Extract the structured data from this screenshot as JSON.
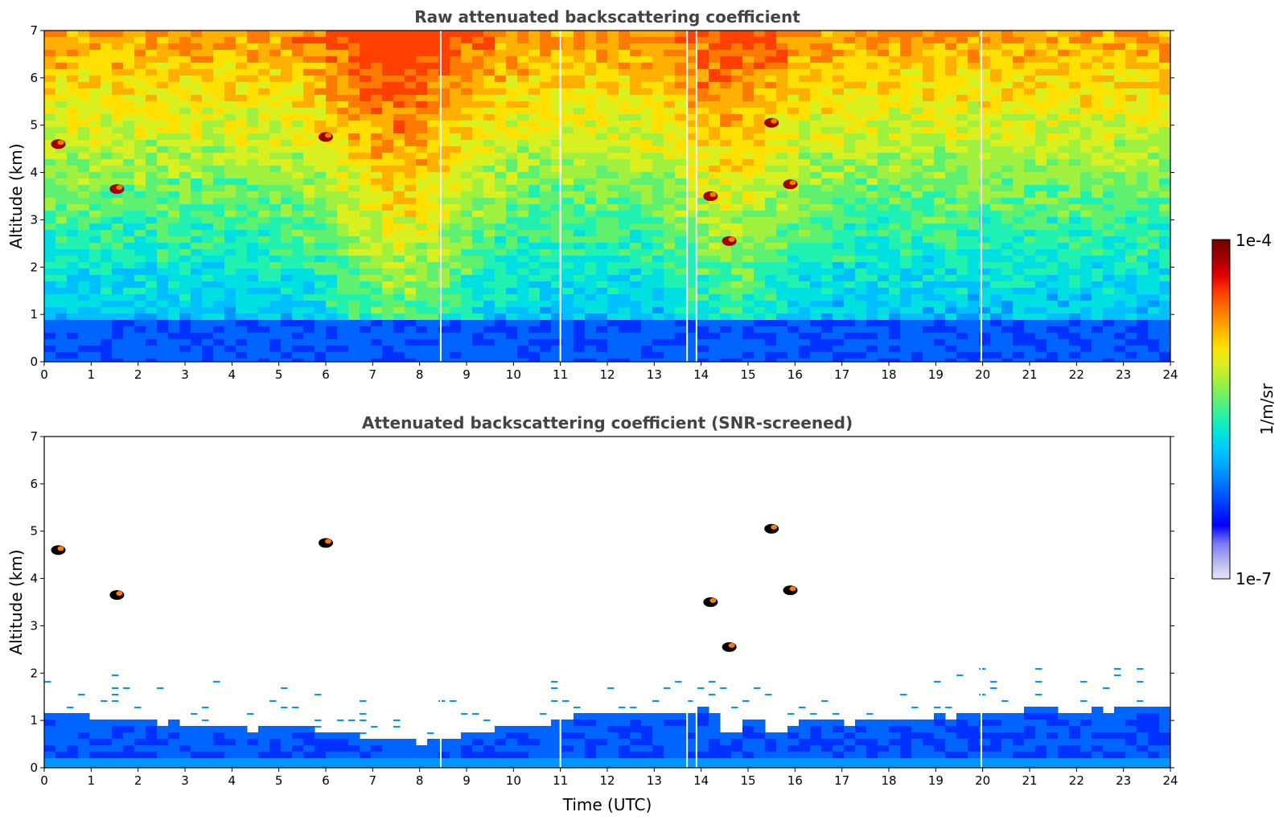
{
  "chart_data": [
    {
      "type": "heatmap",
      "title": "Raw attenuated backscattering coefficient",
      "xlabel": "",
      "ylabel": "Altitude (km)",
      "xlim": [
        0,
        24
      ],
      "ylim": [
        0,
        7
      ],
      "xticks": [
        "0",
        "1",
        "2",
        "3",
        "4",
        "5",
        "6",
        "7",
        "8",
        "9",
        "10",
        "11",
        "12",
        "13",
        "14",
        "15",
        "16",
        "17",
        "18",
        "19",
        "20",
        "21",
        "22",
        "23",
        "24"
      ],
      "yticks": [
        "0",
        "1",
        "2",
        "3",
        "4",
        "5",
        "6",
        "7"
      ],
      "data_end_time": 23.8,
      "gaps_utc": [
        8.45,
        11.0,
        13.7,
        13.9,
        19.97
      ],
      "features": [
        {
          "x": 0.3,
          "y": 4.6
        },
        {
          "x": 1.55,
          "y": 3.65
        },
        {
          "x": 6.0,
          "y": 4.75
        },
        {
          "x": 14.2,
          "y": 3.5
        },
        {
          "x": 14.6,
          "y": 2.55
        },
        {
          "x": 15.5,
          "y": 5.05
        },
        {
          "x": 15.9,
          "y": 3.75
        }
      ]
    },
    {
      "type": "heatmap",
      "title": "Attenuated backscattering coefficient (SNR-screened)",
      "xlabel": "Time (UTC)",
      "ylabel": "Altitude (km)",
      "xlim": [
        0,
        24
      ],
      "ylim": [
        0,
        7
      ],
      "xticks": [
        "0",
        "1",
        "2",
        "3",
        "4",
        "5",
        "6",
        "7",
        "8",
        "9",
        "10",
        "11",
        "12",
        "13",
        "14",
        "15",
        "16",
        "17",
        "18",
        "19",
        "20",
        "21",
        "22",
        "23",
        "24"
      ],
      "yticks": [
        "0",
        "1",
        "2",
        "3",
        "4",
        "5",
        "6",
        "7"
      ],
      "boundary_layer_top_km": {
        "x": [
          0,
          1,
          2,
          3,
          4,
          5,
          6,
          7,
          7.5,
          8,
          8.5,
          9,
          10,
          11,
          12,
          13,
          14,
          14.5,
          15,
          15.5,
          16,
          17,
          18,
          19,
          20,
          21,
          22,
          23,
          23.8
        ],
        "y": [
          1.25,
          1.15,
          1.05,
          0.95,
          0.9,
          0.95,
          0.85,
          0.75,
          0.65,
          0.6,
          0.75,
          0.8,
          0.95,
          1.1,
          1.25,
          1.2,
          1.3,
          0.8,
          1.2,
          0.7,
          1.1,
          1.05,
          1.1,
          1.15,
          1.2,
          1.3,
          1.25,
          1.3,
          1.35
        ]
      },
      "features": [
        {
          "x": 0.3,
          "y": 4.6
        },
        {
          "x": 1.55,
          "y": 3.65
        },
        {
          "x": 6.0,
          "y": 4.75
        },
        {
          "x": 14.2,
          "y": 3.5
        },
        {
          "x": 14.6,
          "y": 2.55
        },
        {
          "x": 15.5,
          "y": 5.05
        },
        {
          "x": 15.9,
          "y": 3.75
        }
      ]
    }
  ],
  "colorbar": {
    "label": "1/m/sr",
    "max_label": "1e-4",
    "min_label": "1e-7",
    "colors": [
      "#e6e6fa",
      "#b4b4f0",
      "#7878f5",
      "#0000ff",
      "#0032ff",
      "#0064ff",
      "#0096ff",
      "#00bfff",
      "#00e0e0",
      "#20f0b0",
      "#60f070",
      "#a0f040",
      "#d8f020",
      "#ffe000",
      "#ffb000",
      "#ff7a00",
      "#ff4000",
      "#e00000",
      "#a00000",
      "#700000"
    ]
  }
}
